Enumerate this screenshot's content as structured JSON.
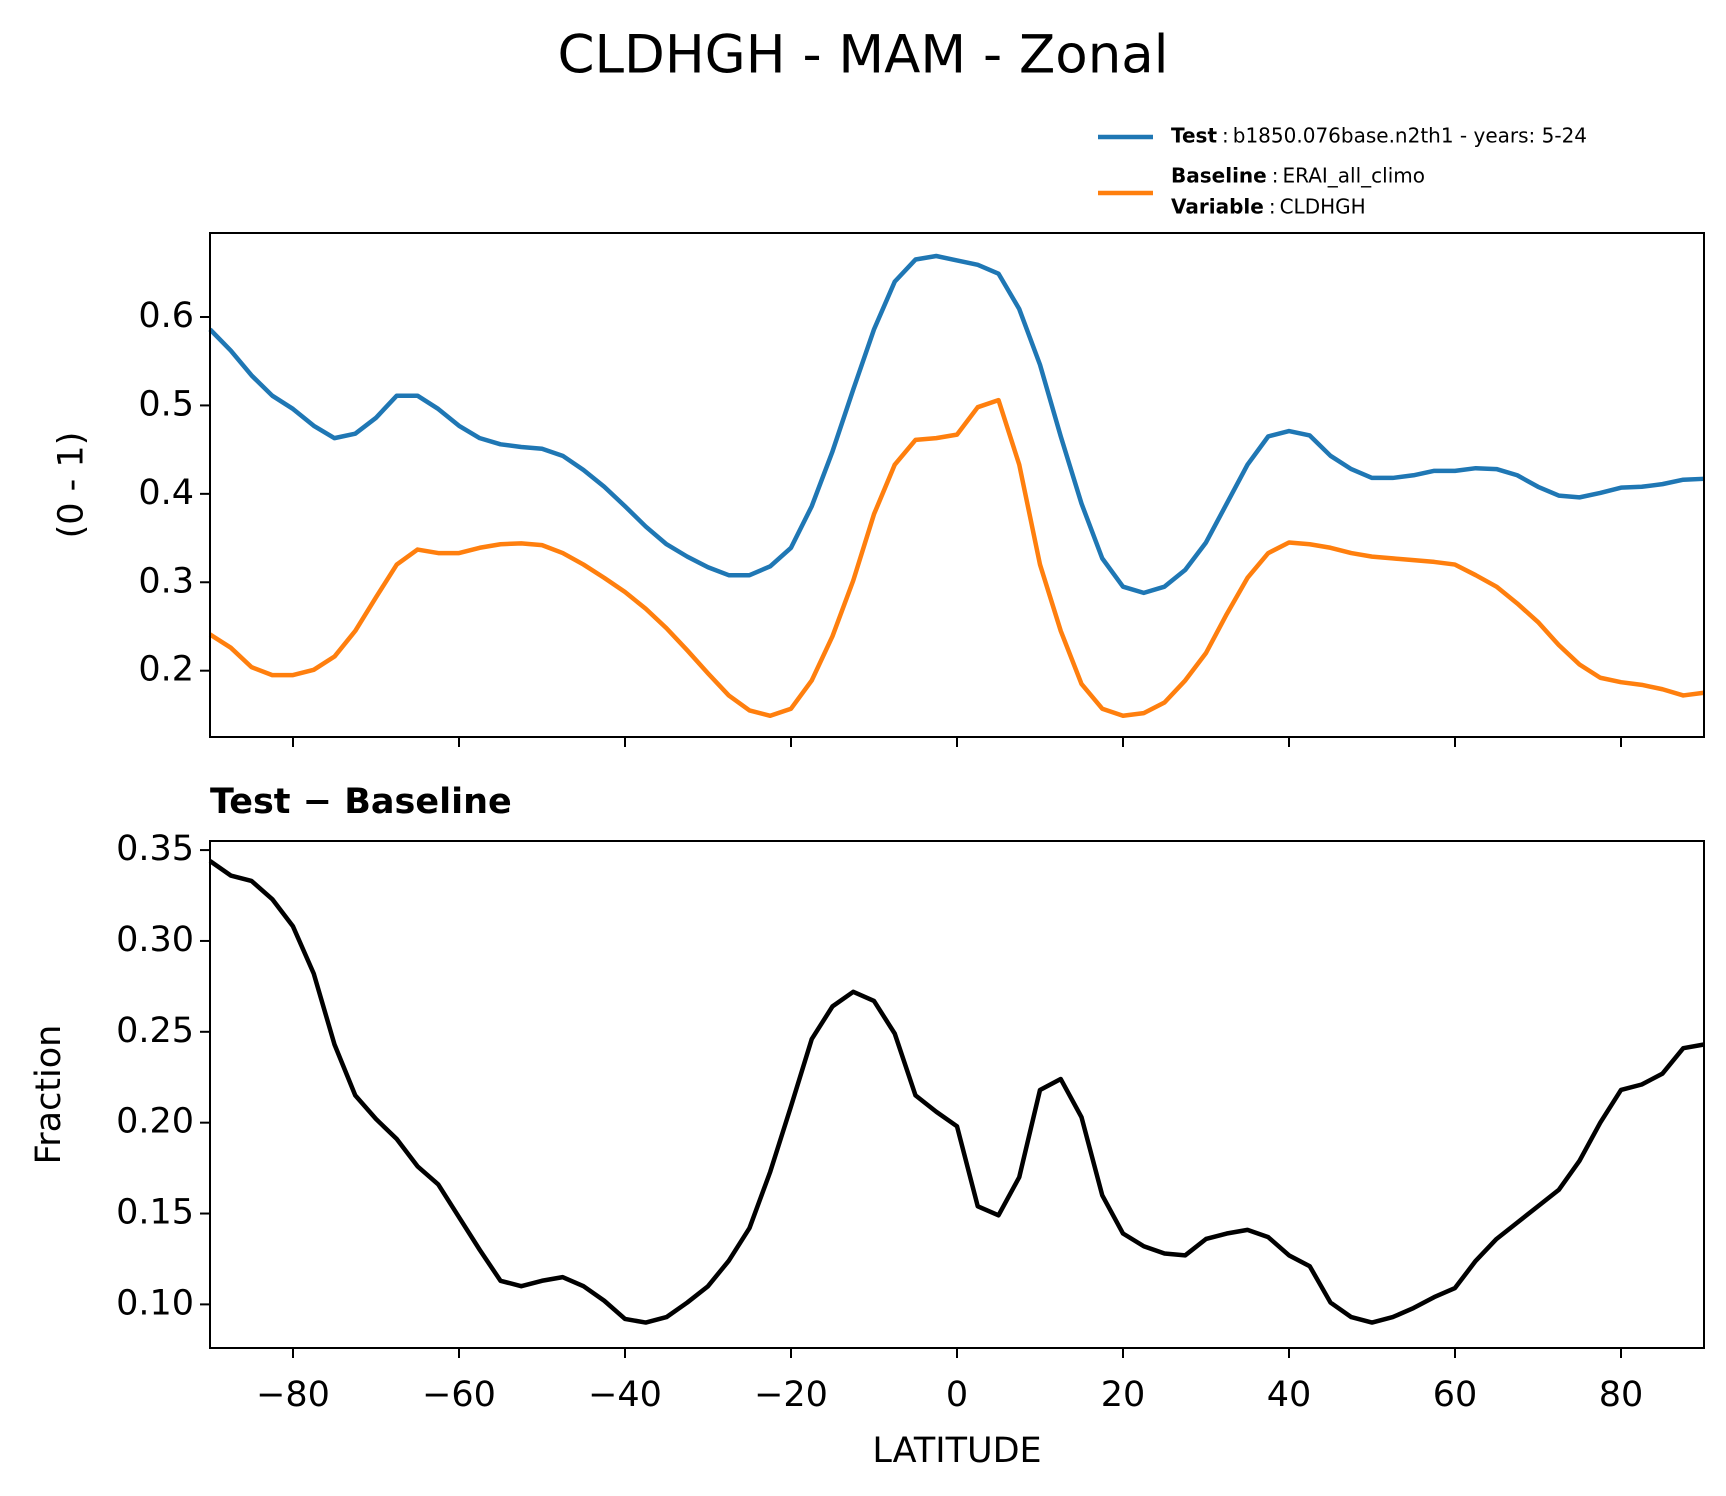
{
  "title": "CLDHGH - MAM - Zonal",
  "chart_data": [
    {
      "type": "line",
      "ylabel": "(0 - 1)",
      "x": [
        -90,
        -87.5,
        -85,
        -82.5,
        -80,
        -77.5,
        -75,
        -72.5,
        -70,
        -67.5,
        -65,
        -62.5,
        -60,
        -57.5,
        -55,
        -52.5,
        -50,
        -47.5,
        -45,
        -42.5,
        -40,
        -37.5,
        -35,
        -32.5,
        -30,
        -27.5,
        -25,
        -22.5,
        -20,
        -17.5,
        -15,
        -12.5,
        -10,
        -7.5,
        -5,
        -2.5,
        0,
        2.5,
        5,
        7.5,
        10,
        12.5,
        15,
        17.5,
        20,
        22.5,
        25,
        27.5,
        30,
        32.5,
        35,
        37.5,
        40,
        42.5,
        45,
        47.5,
        50,
        52.5,
        55,
        57.5,
        60,
        62.5,
        65,
        67.5,
        70,
        72.5,
        75,
        77.5,
        80,
        82.5,
        85,
        87.5,
        90
      ],
      "series": [
        {
          "name": "Test",
          "detail": "b1850.076base.n2th1 - years: 5-24",
          "color": "#1f77b4",
          "values": [
            0.586,
            0.562,
            0.534,
            0.511,
            0.496,
            0.477,
            0.463,
            0.468,
            0.486,
            0.511,
            0.511,
            0.496,
            0.477,
            0.463,
            0.456,
            0.453,
            0.451,
            0.443,
            0.427,
            0.408,
            0.386,
            0.363,
            0.343,
            0.329,
            0.317,
            0.308,
            0.308,
            0.318,
            0.339,
            0.386,
            0.448,
            0.518,
            0.586,
            0.64,
            0.665,
            0.669,
            0.664,
            0.659,
            0.649,
            0.609,
            0.546,
            0.465,
            0.389,
            0.327,
            0.295,
            0.288,
            0.295,
            0.314,
            0.345,
            0.389,
            0.433,
            0.465,
            0.471,
            0.466,
            0.443,
            0.428,
            0.418,
            0.418,
            0.421,
            0.426,
            0.426,
            0.429,
            0.428,
            0.421,
            0.408,
            0.398,
            0.396,
            0.401,
            0.407,
            0.408,
            0.411,
            0.416,
            0.417
          ]
        },
        {
          "name": "Baseline",
          "detail": "ERAI_all_climo",
          "color": "#ff7f0e",
          "values": [
            0.241,
            0.226,
            0.204,
            0.195,
            0.195,
            0.201,
            0.216,
            0.245,
            0.283,
            0.32,
            0.337,
            0.333,
            0.333,
            0.339,
            0.343,
            0.344,
            0.342,
            0.333,
            0.32,
            0.305,
            0.289,
            0.27,
            0.248,
            0.223,
            0.197,
            0.172,
            0.155,
            0.149,
            0.157,
            0.189,
            0.239,
            0.302,
            0.377,
            0.433,
            0.461,
            0.463,
            0.467,
            0.498,
            0.506,
            0.433,
            0.32,
            0.245,
            0.185,
            0.157,
            0.149,
            0.152,
            0.164,
            0.189,
            0.22,
            0.264,
            0.305,
            0.333,
            0.345,
            0.343,
            0.339,
            0.333,
            0.329,
            0.327,
            0.325,
            0.323,
            0.32,
            0.308,
            0.295,
            0.276,
            0.255,
            0.229,
            0.207,
            0.192,
            0.187,
            0.184,
            0.179,
            0.172,
            0.175
          ]
        }
      ],
      "legend_separator": ":",
      "legend_extra": {
        "name": "Variable",
        "detail": "CLDHGH"
      },
      "xlim": [
        -90,
        90
      ],
      "xticks": [
        -80,
        -60,
        -40,
        -20,
        0,
        20,
        40,
        60,
        80
      ],
      "xticklabels": false,
      "ylim": [
        0.125,
        0.695
      ],
      "yticks": [
        0.2,
        0.3,
        0.4,
        0.5,
        0.6
      ]
    },
    {
      "type": "line",
      "title": "Test − Baseline",
      "xlabel": "LATITUDE",
      "ylabel": "Fraction",
      "x": [
        -90,
        -87.5,
        -85,
        -82.5,
        -80,
        -77.5,
        -75,
        -72.5,
        -70,
        -67.5,
        -65,
        -62.5,
        -60,
        -57.5,
        -55,
        -52.5,
        -50,
        -47.5,
        -45,
        -42.5,
        -40,
        -37.5,
        -35,
        -32.5,
        -30,
        -27.5,
        -25,
        -22.5,
        -20,
        -17.5,
        -15,
        -12.5,
        -10,
        -7.5,
        -5,
        -2.5,
        0,
        2.5,
        5,
        7.5,
        10,
        12.5,
        15,
        17.5,
        20,
        22.5,
        25,
        27.5,
        30,
        32.5,
        35,
        37.5,
        40,
        42.5,
        45,
        47.5,
        50,
        52.5,
        55,
        57.5,
        60,
        62.5,
        65,
        67.5,
        70,
        72.5,
        75,
        77.5,
        80,
        82.5,
        85,
        87.5,
        90
      ],
      "series": [
        {
          "color": "#000000",
          "values": [
            0.344,
            0.336,
            0.333,
            0.323,
            0.308,
            0.282,
            0.243,
            0.215,
            0.202,
            0.191,
            0.176,
            0.166,
            0.148,
            0.13,
            0.113,
            0.11,
            0.113,
            0.115,
            0.11,
            0.102,
            0.092,
            0.09,
            0.093,
            0.101,
            0.11,
            0.124,
            0.142,
            0.173,
            0.209,
            0.246,
            0.264,
            0.272,
            0.267,
            0.249,
            0.215,
            0.206,
            0.198,
            0.154,
            0.149,
            0.17,
            0.218,
            0.224,
            0.203,
            0.16,
            0.139,
            0.132,
            0.128,
            0.127,
            0.136,
            0.139,
            0.141,
            0.137,
            0.127,
            0.121,
            0.101,
            0.093,
            0.09,
            0.093,
            0.098,
            0.104,
            0.109,
            0.124,
            0.136,
            0.145,
            0.154,
            0.163,
            0.179,
            0.2,
            0.218,
            0.221,
            0.227,
            0.241,
            0.243
          ]
        }
      ],
      "xlim": [
        -90,
        90
      ],
      "xticks": [
        {
          "value": -80,
          "label": "−80"
        },
        {
          "value": -60,
          "label": "−60"
        },
        {
          "value": -40,
          "label": "−40"
        },
        {
          "value": -20,
          "label": "−20"
        },
        0,
        20,
        40,
        60,
        80
      ],
      "xticklabels": true,
      "ylim": [
        0.076,
        0.355
      ],
      "yticks": [
        {
          "value": 0.1,
          "label": "0.10"
        },
        0.15,
        {
          "value": 0.2,
          "label": "0.20"
        },
        0.25,
        {
          "value": 0.3,
          "label": "0.30"
        },
        0.35
      ]
    }
  ]
}
